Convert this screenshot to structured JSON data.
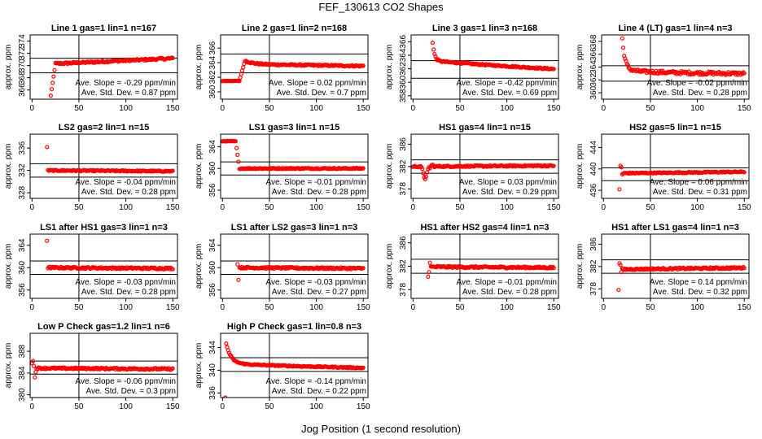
{
  "figure": {
    "title": "FEF_130613  CO2 Shapes",
    "xlabel": "Jog Position (1 second resolution)"
  },
  "chart_data": [
    {
      "type": "scatter",
      "title": "Line 1 gas=1 lin=1 n=167",
      "ylabel": "approx. ppm",
      "xlim": [
        -2,
        155
      ],
      "ylim": [
        364.5,
        375
      ],
      "yticks": [
        366,
        368,
        370,
        372,
        374
      ],
      "xticks": [
        0,
        50,
        100,
        150
      ],
      "ref_lines": [
        371.2,
        368.8
      ],
      "stats": [
        "Ave. Slope = -0.29  ppm/min",
        "Ave. Std. Dev. = 0.87  ppm"
      ],
      "shape": {
        "kind": "rise",
        "x_start": 18,
        "x_end": 25,
        "from": 363,
        "to": 370.3,
        "base": 370.3,
        "slope": 0.007,
        "noise": 0.15
      }
    },
    {
      "type": "scatter",
      "title": "Line 2 gas=1 lin=2 n=168",
      "ylabel": "approx. ppm",
      "xlim": [
        -2,
        155
      ],
      "ylim": [
        359,
        367.8
      ],
      "yticks": [
        360,
        362,
        364,
        366
      ],
      "xticks": [
        0,
        50,
        100,
        150
      ],
      "ref_lines": [
        365.2,
        362.6
      ],
      "stats": [
        "Ave. Slope = 0.02  ppm/min",
        "Ave. Std. Dev. = 0.7  ppm"
      ],
      "shape": {
        "kind": "step",
        "x_start": 0,
        "x_step": 18,
        "x_rise_end": 24,
        "low": 361.5,
        "to": 364.3,
        "base": 363.8,
        "slope": -0.002,
        "noise": 0.1
      }
    },
    {
      "type": "scatter",
      "title": "Line 3 gas=1 lin=3 n=168",
      "ylabel": "approx. ppm",
      "xlim": [
        -2,
        155
      ],
      "ylim": [
        357.5,
        367
      ],
      "yticks": [
        358,
        360,
        362,
        364,
        366
      ],
      "xticks": [
        0,
        50,
        100,
        150
      ],
      "ref_lines": [
        363.2,
        360.6
      ],
      "stats": [
        "Ave. Slope = -0.42  ppm/min",
        "Ave. Std. Dev. = 0.69  ppm"
      ],
      "shape": {
        "kind": "decay",
        "x_start": 20,
        "peak": 367.5,
        "settle": 363.2,
        "tau": 2,
        "base": 363.0,
        "slope": -0.008,
        "noise": 0.1
      }
    },
    {
      "type": "scatter",
      "title": "Line 4 (LT) gas=1 lin=4 n=3",
      "ylabel": "approx. ppm",
      "xlim": [
        -2,
        155
      ],
      "ylim": [
        359,
        369
      ],
      "yticks": [
        360,
        362,
        364,
        366,
        368
      ],
      "xticks": [
        0,
        50,
        100,
        150
      ],
      "ref_lines": [
        364.2,
        361.8
      ],
      "stats": [
        "Ave. Slope = -0.02  ppm/min",
        "Ave. Std. Dev. = 0.28  ppm"
      ],
      "shape": {
        "kind": "decay",
        "x_start": 20,
        "peak": 368,
        "settle": 363.5,
        "tau": 3,
        "base": 363.1,
        "slope": -0.001,
        "noise": 0.25
      }
    },
    {
      "type": "scatter",
      "title": "LS2 gas=2 lin=1 n=15",
      "ylabel": "approx. ppm",
      "xlim": [
        -2,
        155
      ],
      "ylim": [
        327,
        338.5
      ],
      "yticks": [
        328,
        332,
        336
      ],
      "xticks": [
        0,
        50,
        100,
        150
      ],
      "ref_lines": [
        333.2,
        330.8
      ],
      "stats": [
        "Ave. Slope = -0.04  ppm/min",
        "Ave. Std. Dev. = 0.28  ppm"
      ],
      "shape": {
        "kind": "flat",
        "x_start": 16,
        "first": 336.2,
        "base": 332.0,
        "slope": -0.001,
        "noise": 0.1
      }
    },
    {
      "type": "scatter",
      "title": "LS1 gas=3 lin=1 n=15",
      "ylabel": "approx. ppm",
      "xlim": [
        -2,
        155
      ],
      "ylim": [
        354.5,
        366.3
      ],
      "yticks": [
        356,
        360,
        364
      ],
      "xticks": [
        0,
        50,
        100,
        150
      ],
      "ref_lines": [
        361.2,
        358.8
      ],
      "stats": [
        "Ave. Slope = -0.01  ppm/min",
        "Ave. Std. Dev. = 0.28  ppm"
      ],
      "shape": {
        "kind": "plateau",
        "x_start": 0,
        "x_drop": 14,
        "x_drop_end": 18,
        "high": 365.0,
        "base": 360.0,
        "slope": 0.0,
        "noise": 0.1
      }
    },
    {
      "type": "scatter",
      "title": "HS1 gas=4 lin=1 n=15",
      "ylabel": "approx. ppm",
      "xlim": [
        -2,
        155
      ],
      "ylim": [
        376.3,
        387.8
      ],
      "yticks": [
        378,
        382,
        386
      ],
      "xticks": [
        0,
        50,
        100,
        150
      ],
      "ref_lines": [
        383.2,
        380.8
      ],
      "stats": [
        "Ave. Slope = 0.03  ppm/min",
        "Ave. Std. Dev. = 0.29  ppm"
      ],
      "shape": {
        "kind": "dip",
        "x_start": 0,
        "dip_at": 13,
        "dip": 379.8,
        "base": 382.0,
        "slope": 0.001,
        "noise": 0.12
      }
    },
    {
      "type": "scatter",
      "title": "HS2 gas=5 lin=1 n=15",
      "ylabel": "approx. ppm",
      "xlim": [
        -2,
        155
      ],
      "ylim": [
        434.5,
        446.5
      ],
      "yticks": [
        436,
        440,
        444
      ],
      "xticks": [
        0,
        50,
        100,
        150
      ],
      "ref_lines": [
        440.2,
        437.8
      ],
      "stats": [
        "Ave. Slope = 0.06  ppm/min",
        "Ave. Std. Dev. = 0.31  ppm"
      ],
      "shape": {
        "kind": "rise",
        "x_start": 17,
        "x_end": 22,
        "from": 439.0,
        "to": 439.2,
        "base": 439.2,
        "slope": 0.002,
        "noise": 0.1,
        "outliers": [
          [
            17,
            436.2
          ],
          [
            18,
            440.6
          ],
          [
            19,
            440.3
          ],
          [
            20,
            439.0
          ]
        ]
      }
    },
    {
      "type": "scatter",
      "title": "LS1 after HS1 gas=3 lin=1 n=3",
      "ylabel": "approx. ppm",
      "xlim": [
        -2,
        155
      ],
      "ylim": [
        354.5,
        366
      ],
      "yticks": [
        356,
        360,
        364
      ],
      "xticks": [
        0,
        50,
        100,
        150
      ],
      "ref_lines": [
        361.2,
        358.8
      ],
      "stats": [
        "Ave. Slope = -0.03  ppm/min",
        "Ave. Std. Dev. = 0.28  ppm"
      ],
      "shape": {
        "kind": "flat",
        "x_start": 16,
        "first": 364.8,
        "base": 360.0,
        "slope": -0.001,
        "noise": 0.15
      }
    },
    {
      "type": "scatter",
      "title": "LS1 after LS2 gas=3 lin=1 n=3",
      "ylabel": "approx. ppm",
      "xlim": [
        -2,
        155
      ],
      "ylim": [
        354.5,
        366
      ],
      "yticks": [
        356,
        360,
        364
      ],
      "xticks": [
        0,
        50,
        100,
        150
      ],
      "ref_lines": [
        361.2,
        358.8
      ],
      "stats": [
        "Ave. Slope = -0.03  ppm/min",
        "Ave. Std. Dev. = 0.27  ppm"
      ],
      "shape": {
        "kind": "flat",
        "x_start": 16,
        "first": 360.6,
        "base": 360.0,
        "slope": -0.001,
        "noise": 0.15,
        "outliers": [
          [
            17,
            357.8
          ]
        ]
      }
    },
    {
      "type": "scatter",
      "title": "HS1 after HS2 gas=4 lin=1 n=3",
      "ylabel": "approx. ppm",
      "xlim": [
        -2,
        155
      ],
      "ylim": [
        376.5,
        387.5
      ],
      "yticks": [
        378,
        382,
        386
      ],
      "xticks": [
        0,
        50,
        100,
        150
      ],
      "ref_lines": [
        383.2,
        380.8
      ],
      "stats": [
        "Ave. Slope = -0.01  ppm/min",
        "Ave. Std. Dev. = 0.28  ppm"
      ],
      "shape": {
        "kind": "flat",
        "x_start": 16,
        "first": 380.2,
        "base": 381.9,
        "slope": -0.001,
        "noise": 0.15,
        "outliers": [
          [
            17,
            381.0
          ],
          [
            18,
            382.6
          ]
        ]
      }
    },
    {
      "type": "scatter",
      "title": "HS1 after LS1 gas=4 lin=1 n=3",
      "ylabel": "approx. ppm",
      "xlim": [
        -2,
        155
      ],
      "ylim": [
        376.3,
        387.8
      ],
      "yticks": [
        378,
        382,
        386
      ],
      "xticks": [
        0,
        50,
        100,
        150
      ],
      "ref_lines": [
        383.2,
        380.8
      ],
      "stats": [
        "Ave. Slope = 0.14  ppm/min",
        "Ave. Std. Dev. = 0.32  ppm"
      ],
      "shape": {
        "kind": "flat",
        "x_start": 16,
        "first": 377.8,
        "base": 381.5,
        "slope": 0.002,
        "noise": 0.15,
        "outliers": [
          [
            17,
            382.6
          ],
          [
            18,
            382.3
          ],
          [
            19,
            381.0
          ]
        ]
      }
    },
    {
      "type": "scatter",
      "title": "Low P Check gas=1.2 lin=1 n=6",
      "ylabel": "approx. ppm",
      "xlim": [
        -2,
        155
      ],
      "ylim": [
        379.5,
        391.3
      ],
      "yticks": [
        380,
        384,
        388
      ],
      "xticks": [
        0,
        50,
        100,
        150
      ],
      "ref_lines": [
        386.2,
        383.8
      ],
      "stats": [
        "Ave. Slope = -0.06  ppm/min",
        "Ave. Std. Dev. = 0.3  ppm"
      ],
      "shape": {
        "kind": "flat",
        "x_start": 0,
        "first": 385.8,
        "base": 384.9,
        "slope": -0.001,
        "noise": 0.15,
        "outliers": [
          [
            1,
            386.2
          ],
          [
            2,
            385.3
          ],
          [
            3,
            383.2
          ],
          [
            4,
            384.2
          ],
          [
            5,
            384.8
          ]
        ]
      }
    },
    {
      "type": "scatter",
      "title": "High P Check gas=1 lin=0.8 n=3",
      "ylabel": "approx. ppm",
      "xlim": [
        -2,
        155
      ],
      "ylim": [
        335.2,
        346.5
      ],
      "yticks": [
        336,
        340,
        344
      ],
      "xticks": [
        0,
        50,
        100,
        150
      ],
      "ref_lines": [
        342.2,
        339.8
      ],
      "stats": [
        "Ave. Slope = -0.14  ppm/min",
        "Ave. Std. Dev. = 0.22  ppm"
      ],
      "shape": {
        "kind": "decay",
        "x_start": 4,
        "peak": 344.5,
        "settle": 341.2,
        "tau": 5,
        "base": 341.0,
        "slope": -0.004,
        "noise": 0.1,
        "outliers": [
          [
            3,
            335.2
          ]
        ]
      }
    }
  ]
}
